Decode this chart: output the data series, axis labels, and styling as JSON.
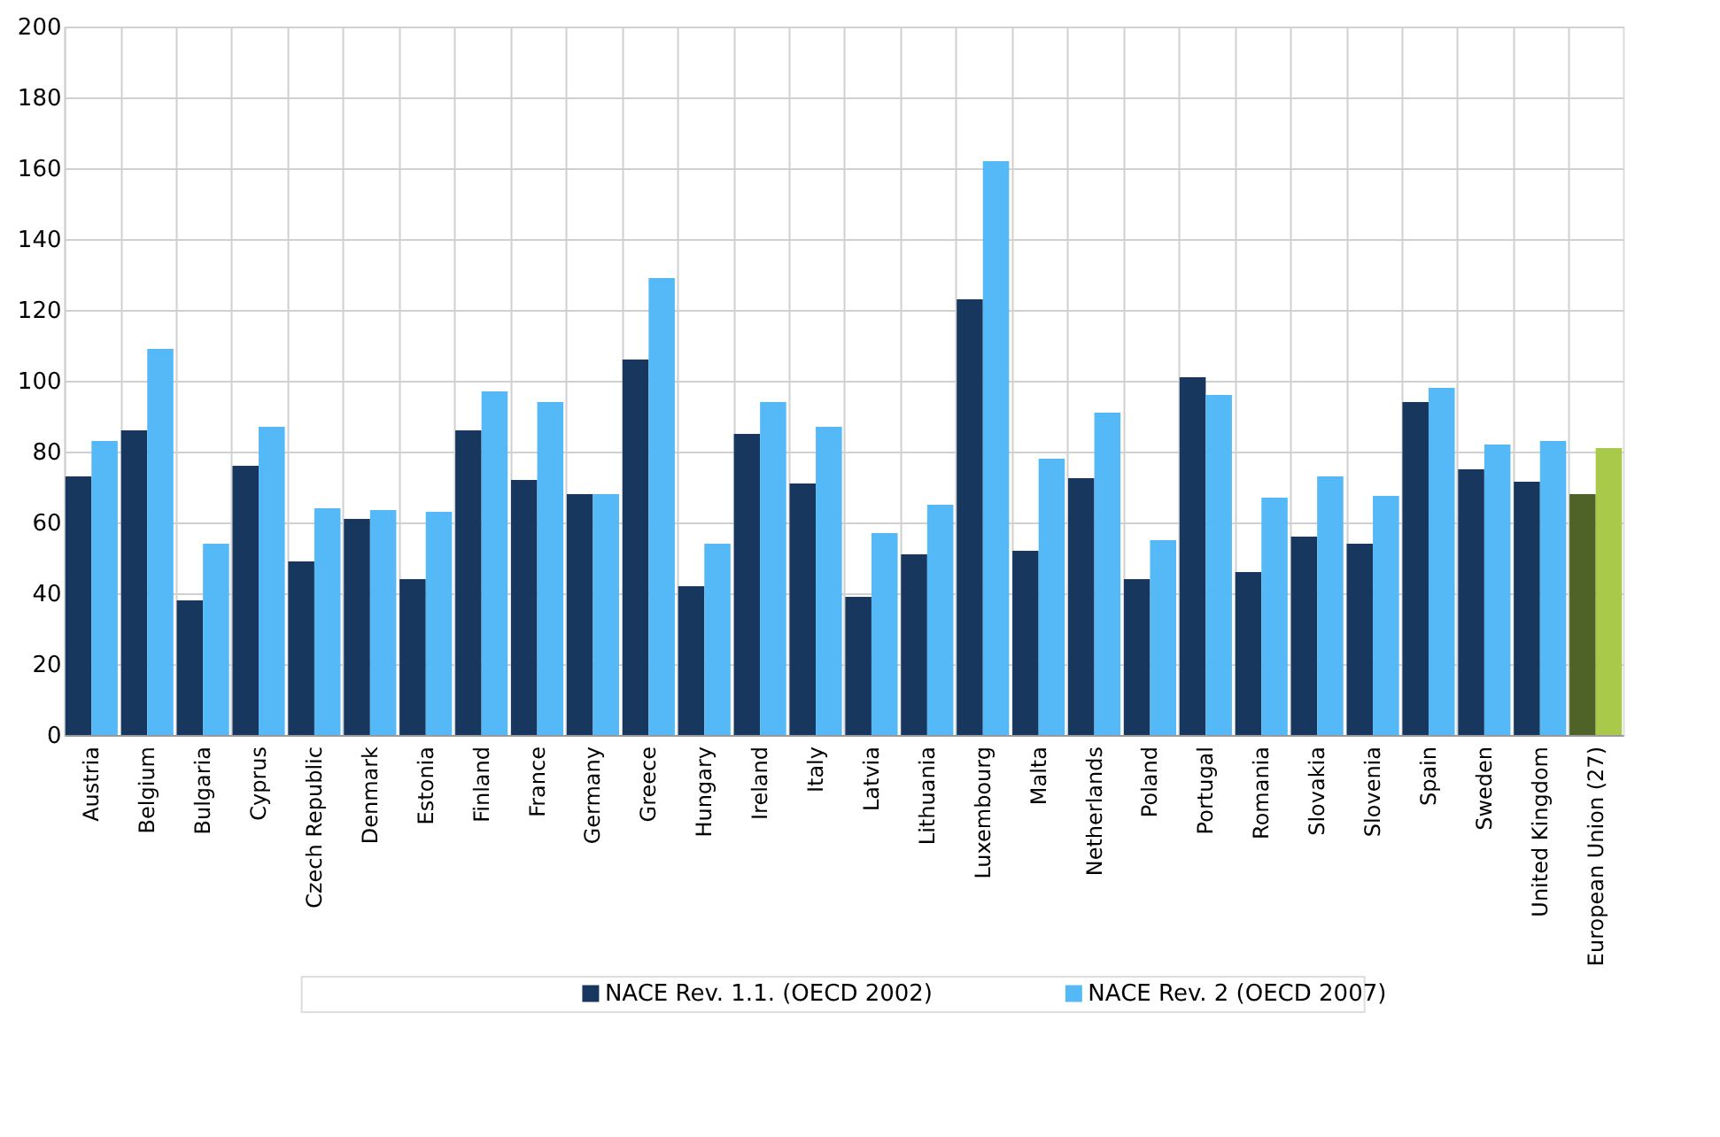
{
  "chart_data": {
    "type": "bar",
    "categories": [
      "Austria",
      "Belgium",
      "Bulgaria",
      "Cyprus",
      "Czech Republic",
      "Denmark",
      "Estonia",
      "Finland",
      "France",
      "Germany",
      "Greece",
      "Hungary",
      "Ireland",
      "Italy",
      "Latvia",
      "Lithuania",
      "Luxembourg",
      "Malta",
      "Netherlands",
      "Poland",
      "Portugal",
      "Romania",
      "Slovakia",
      "Slovenia",
      "Spain",
      "Sweden",
      "United Kingdom",
      "European Union (27)"
    ],
    "series": [
      {
        "name": "NACE Rev. 1.1. (OECD 2002)",
        "color": "#17375e",
        "colors": [
          "#17375e",
          "#17375e",
          "#17375e",
          "#17375e",
          "#17375e",
          "#17375e",
          "#17375e",
          "#17375e",
          "#17375e",
          "#17375e",
          "#17375e",
          "#17375e",
          "#17375e",
          "#17375e",
          "#17375e",
          "#17375e",
          "#17375e",
          "#17375e",
          "#17375e",
          "#17375e",
          "#17375e",
          "#17375e",
          "#17375e",
          "#17375e",
          "#17375e",
          "#17375e",
          "#17375e",
          "#4f6228"
        ],
        "values": [
          73,
          86,
          38,
          76,
          49,
          61,
          44,
          86,
          72,
          68,
          106,
          42,
          85,
          71,
          39,
          51,
          123,
          52,
          72.5,
          44,
          101,
          46,
          56,
          54,
          94,
          75,
          71.5,
          68
        ]
      },
      {
        "name": "NACE Rev. 2 (OECD 2007)",
        "color": "#55b9f7",
        "colors": [
          "#55b9f7",
          "#55b9f7",
          "#55b9f7",
          "#55b9f7",
          "#55b9f7",
          "#55b9f7",
          "#55b9f7",
          "#55b9f7",
          "#55b9f7",
          "#55b9f7",
          "#55b9f7",
          "#55b9f7",
          "#55b9f7",
          "#55b9f7",
          "#55b9f7",
          "#55b9f7",
          "#55b9f7",
          "#55b9f7",
          "#55b9f7",
          "#55b9f7",
          "#55b9f7",
          "#55b9f7",
          "#55b9f7",
          "#55b9f7",
          "#55b9f7",
          "#55b9f7",
          "#55b9f7",
          "#a9c94b"
        ],
        "values": [
          83,
          109,
          54,
          87,
          64,
          63.5,
          63,
          97,
          94,
          68,
          129,
          54,
          94,
          87,
          57,
          65,
          162,
          78,
          91,
          55,
          96,
          67,
          73,
          67.5,
          98,
          82,
          83,
          81
        ]
      }
    ],
    "ylim": [
      0,
      200
    ],
    "yticks": [
      0,
      20,
      40,
      60,
      80,
      100,
      120,
      140,
      160,
      180,
      200
    ],
    "grid": true,
    "legend": "bottom"
  }
}
